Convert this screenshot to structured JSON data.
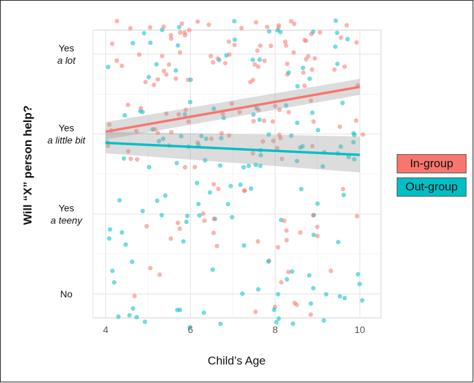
{
  "chart_data": {
    "type": "scatter",
    "title": "",
    "xlabel": "Child’s Age",
    "ylabel": "Will “X” person help?",
    "xlim": [
      3.7,
      10.5
    ],
    "ylim": [
      0.7,
      4.3
    ],
    "x_ticks": [
      "4",
      "6",
      "8",
      "10"
    ],
    "x_tick_values": [
      4,
      6,
      8,
      10
    ],
    "y_tick_values": [
      1,
      2,
      3,
      4
    ],
    "y_categories": [
      {
        "value": 4,
        "line1": "Yes",
        "line2": "a lot"
      },
      {
        "value": 3,
        "line1": "Yes",
        "line2": "a little bit"
      },
      {
        "value": 2,
        "line1": "Yes",
        "line2": "a teeny"
      },
      {
        "value": 1,
        "line1": "No",
        "line2": ""
      }
    ],
    "grid": true,
    "legend_position": "right",
    "series": [
      {
        "name": "In-group",
        "color": "#F8766D",
        "trend": {
          "x": [
            4,
            10
          ],
          "y": [
            3.03,
            3.59
          ]
        },
        "ci_upper": [
          3.15,
          3.69
        ],
        "ci_lower": [
          2.93,
          3.49
        ]
      },
      {
        "name": "Out-group",
        "color": "#00BFC4",
        "trend": {
          "x": [
            4,
            10
          ],
          "y": [
            2.89,
            2.74
          ]
        },
        "ci_upper": [
          3.03,
          2.97
        ],
        "ci_lower": [
          2.76,
          2.52
        ]
      }
    ]
  },
  "legend": {
    "in_group": "In-group",
    "out_group": "Out-group"
  }
}
